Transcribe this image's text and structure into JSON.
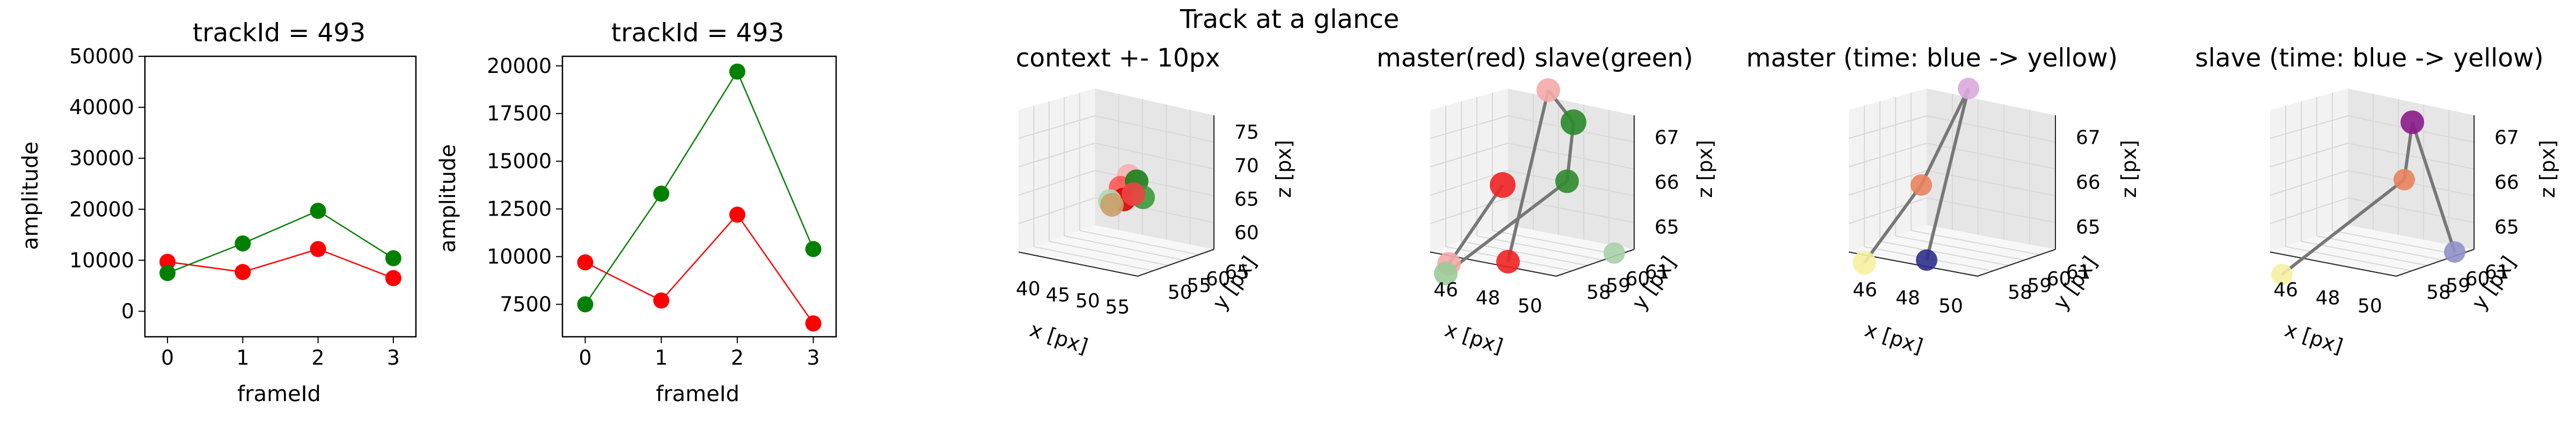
{
  "figure": {
    "suptitle": "Track at a glance"
  },
  "chart_data": [
    {
      "type": "line",
      "title": "trackId = 493",
      "xlabel": "frameId",
      "ylabel": "amplitude",
      "x": [
        0,
        1,
        2,
        3
      ],
      "xticks": [
        "0",
        "1",
        "2",
        "3"
      ],
      "xlim": [
        -0.3,
        3.3
      ],
      "ylim": [
        -5000,
        50000
      ],
      "yticks": [
        "0",
        "10000",
        "20000",
        "30000",
        "40000",
        "50000"
      ],
      "ytick_values": [
        0,
        10000,
        20000,
        30000,
        40000,
        50000
      ],
      "series": [
        {
          "color": "#ff0000",
          "values": [
            9700,
            7700,
            12200,
            6500
          ]
        },
        {
          "color": "#008000",
          "values": [
            7500,
            13300,
            19700,
            10400
          ]
        }
      ]
    },
    {
      "type": "line",
      "title": "trackId = 493",
      "xlabel": "frameId",
      "ylabel": "amplitude",
      "x": [
        0,
        1,
        2,
        3
      ],
      "xticks": [
        "0",
        "1",
        "2",
        "3"
      ],
      "xlim": [
        -0.3,
        3.3
      ],
      "ylim": [
        5800,
        20500
      ],
      "yticks": [
        "7500",
        "10000",
        "12500",
        "15000",
        "17500",
        "20000"
      ],
      "ytick_values": [
        7500,
        10000,
        12500,
        15000,
        17500,
        20000
      ],
      "series": [
        {
          "color": "#ff0000",
          "values": [
            9700,
            7700,
            12200,
            6500
          ]
        },
        {
          "color": "#008000",
          "values": [
            7500,
            13300,
            19700,
            10400
          ]
        }
      ]
    },
    {
      "type": "scatter",
      "title": "context +- 10px",
      "xlabel": "x [px]",
      "ylabel": "y [px]",
      "zlabel": "z [px]",
      "xticks": [
        "40",
        "45",
        "50",
        "55"
      ],
      "yticks": [
        "50",
        "55",
        "60",
        "65"
      ],
      "zticks": [
        "60",
        "65",
        "70",
        "75"
      ]
    },
    {
      "type": "scatter",
      "title": "master(red) slave(green)",
      "xlabel": "x [px]",
      "ylabel": "y [px]",
      "zlabel": "z [px]",
      "xticks": [
        "46",
        "48",
        "50"
      ],
      "yticks": [
        "58",
        "59",
        "60",
        "61"
      ],
      "zticks": [
        "65",
        "66",
        "67"
      ]
    },
    {
      "type": "scatter",
      "title": "master (time: blue -> yellow)",
      "xlabel": "x [px]",
      "ylabel": "y [px]",
      "zlabel": "z [px]",
      "xticks": [
        "46",
        "48",
        "50"
      ],
      "yticks": [
        "58",
        "59",
        "60",
        "61"
      ],
      "zticks": [
        "65",
        "66",
        "67"
      ]
    },
    {
      "type": "scatter",
      "title": "slave (time: blue -> yellow)",
      "xlabel": "x [px]",
      "ylabel": "y [px]",
      "zlabel": "z [px]",
      "xticks": [
        "46",
        "48",
        "50"
      ],
      "yticks": [
        "58",
        "59",
        "60",
        "61"
      ],
      "zticks": [
        "65",
        "66",
        "67"
      ]
    }
  ]
}
